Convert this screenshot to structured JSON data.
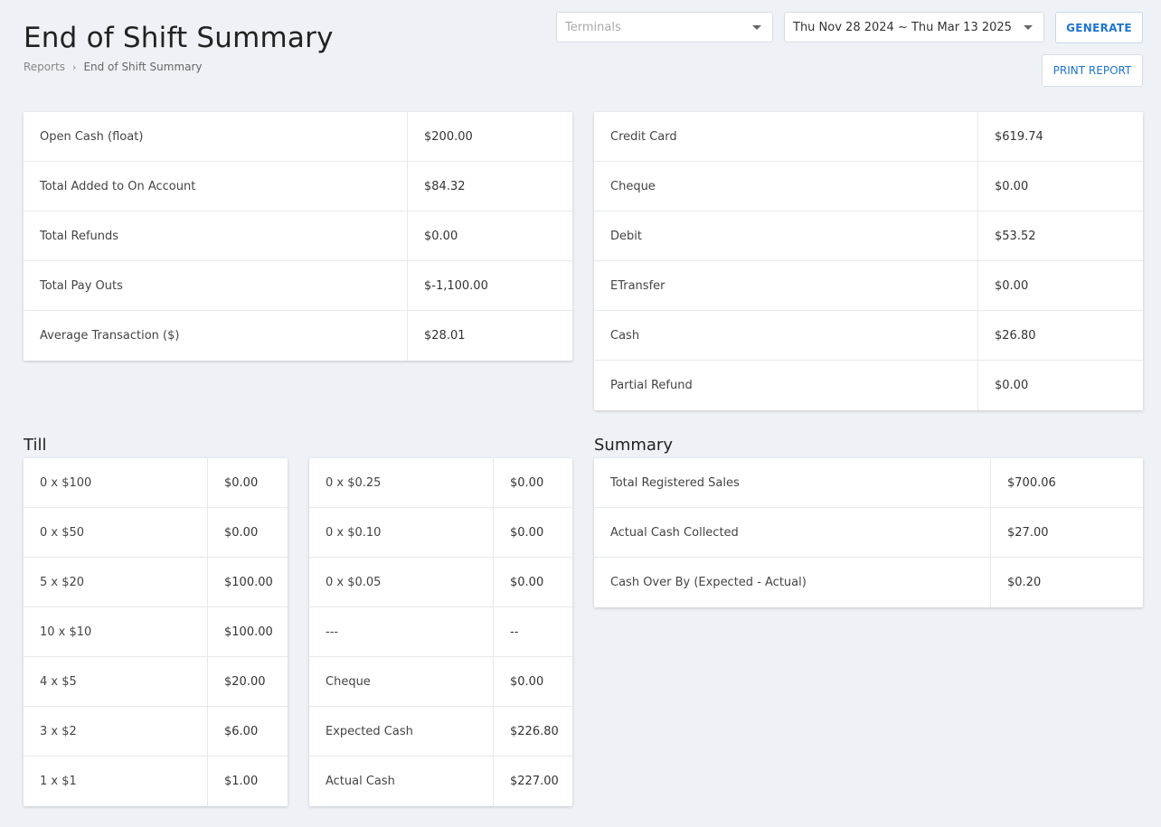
{
  "header": {
    "title": "End of Shift Summary",
    "breadcrumb": {
      "parent": "Reports",
      "current": "End of Shift Summary"
    }
  },
  "controls": {
    "terminals_placeholder": "Terminals",
    "date_range": "Thu Nov 28 2024 ~ Thu Mar 13 2025",
    "generate_label": "GENERATE",
    "print_label": "PRINT REPORT"
  },
  "totals_left": [
    {
      "label": "Open Cash (float)",
      "value": "$200.00"
    },
    {
      "label": "Total Added to On Account",
      "value": "$84.32"
    },
    {
      "label": "Total Refunds",
      "value": "$0.00"
    },
    {
      "label": "Total Pay Outs",
      "value": "$-1,100.00"
    },
    {
      "label": "Average Transaction ($)",
      "value": "$28.01"
    }
  ],
  "totals_right": [
    {
      "label": "Credit Card",
      "value": "$619.74"
    },
    {
      "label": "Cheque",
      "value": "$0.00"
    },
    {
      "label": "Debit",
      "value": "$53.52"
    },
    {
      "label": "ETransfer",
      "value": "$0.00"
    },
    {
      "label": "Cash",
      "value": "$26.80"
    },
    {
      "label": "Partial Refund",
      "value": "$0.00"
    }
  ],
  "till": {
    "heading": "Till",
    "left": [
      {
        "label": "0 x $100",
        "value": "$0.00"
      },
      {
        "label": "0 x $50",
        "value": "$0.00"
      },
      {
        "label": "5 x $20",
        "value": "$100.00"
      },
      {
        "label": "10 x $10",
        "value": "$100.00"
      },
      {
        "label": "4 x $5",
        "value": "$20.00"
      },
      {
        "label": "3 x $2",
        "value": "$6.00"
      },
      {
        "label": "1 x $1",
        "value": "$1.00"
      }
    ],
    "right": [
      {
        "label": "0 x $0.25",
        "value": "$0.00"
      },
      {
        "label": "0 x $0.10",
        "value": "$0.00"
      },
      {
        "label": "0 x $0.05",
        "value": "$0.00"
      },
      {
        "label": "---",
        "value": "--"
      },
      {
        "label": "Cheque",
        "value": "$0.00"
      },
      {
        "label": "Expected Cash",
        "value": "$226.80"
      },
      {
        "label": "Actual Cash",
        "value": "$227.00"
      }
    ]
  },
  "summary": {
    "heading": "Summary",
    "rows": [
      {
        "label": "Total Registered Sales",
        "value": "$700.06"
      },
      {
        "label": "Actual Cash Collected",
        "value": "$27.00"
      },
      {
        "label": "Cash Over By (Expected - Actual)",
        "value": "$0.20"
      }
    ]
  }
}
